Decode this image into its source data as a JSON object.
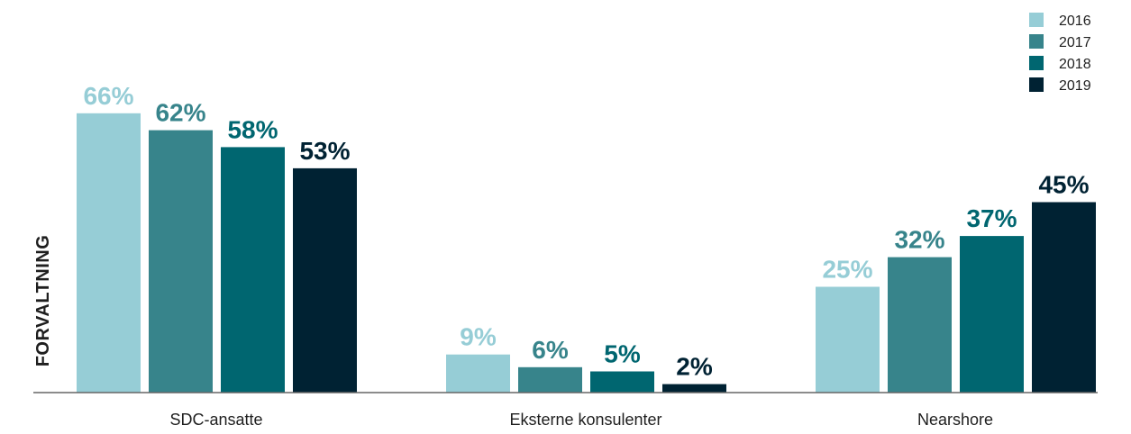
{
  "chart_data": {
    "type": "bar",
    "ylabel": "FORVALTNING",
    "categories": [
      "SDC-ansatte",
      "Eksterne konsulenter",
      "Nearshore"
    ],
    "series": [
      {
        "name": "2016",
        "color": "#96cdd6",
        "values": [
          66,
          9,
          25
        ],
        "labels": [
          "66%",
          "9%",
          "25%"
        ]
      },
      {
        "name": "2017",
        "color": "#37848b",
        "values": [
          62,
          6,
          32
        ],
        "labels": [
          "62%",
          "6%",
          "32%"
        ]
      },
      {
        "name": "2018",
        "color": "#006670",
        "values": [
          58,
          5,
          37
        ],
        "labels": [
          "58%",
          "5%",
          "37%"
        ]
      },
      {
        "name": "2019",
        "color": "#002233",
        "values": [
          53,
          2,
          45
        ],
        "labels": [
          "53%",
          "2%",
          "45%"
        ]
      }
    ],
    "ylim": [
      0,
      66
    ],
    "grid": false,
    "legend_position": "top-right"
  }
}
